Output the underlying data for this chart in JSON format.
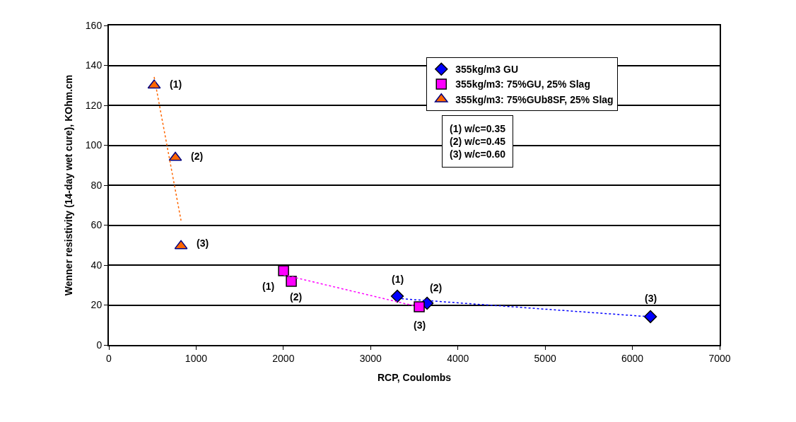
{
  "chart_data": {
    "type": "scatter",
    "xlabel": "RCP, Coulombs",
    "ylabel": "Wenner resistivity (14-day wet cure), KOhm.cm",
    "xlim": [
      0,
      7000
    ],
    "xticks": [
      0,
      1000,
      2000,
      3000,
      4000,
      5000,
      6000,
      7000
    ],
    "ylim": [
      0,
      160
    ],
    "yticks": [
      0,
      20,
      40,
      60,
      80,
      100,
      120,
      140,
      160
    ],
    "grid": "y",
    "legend": "top right",
    "series": [
      {
        "name": "355kg/m3 GU",
        "marker": "diamond",
        "color": "#0000ff",
        "x": [
          3306,
          3647,
          6207
        ],
        "values": [
          24.4,
          20.9,
          14.2
        ]
      },
      {
        "name": "355kg/m3: 75%GU, 25% Slag",
        "marker": "square",
        "color": "#ff00ff",
        "x": [
          2002,
          2091,
          3557
        ],
        "values": [
          37.2,
          31.9,
          19.1
        ]
      },
      {
        "name": "355kg/m3: 75%GUb8SF, 25% Slag",
        "marker": "triangle",
        "color": "#ff6600",
        "x": [
          519,
          762,
          827
        ],
        "values": [
          130,
          93.8,
          49.6
        ]
      },
      {
        "type": "line",
        "line_style": "dotted",
        "color": "#0000ff",
        "x": [
          3306,
          6207
        ],
        "values": [
          23.3,
          14.1
        ]
      },
      {
        "type": "line",
        "line_style": "dotted",
        "color": "#ff00ff",
        "x": [
          2002,
          3557
        ],
        "values": [
          35.1,
          19.0
        ]
      },
      {
        "type": "line",
        "line_style": "dotted",
        "color": "#ff6600",
        "x": [
          519,
          827
        ],
        "values": [
          134.2,
          62.3
        ]
      }
    ],
    "annotations": [
      {
        "text": "(1)",
        "x": 519,
        "y": 130
      },
      {
        "text": "(2)",
        "x": 762,
        "y": 93.8
      },
      {
        "text": "(3)",
        "x": 827,
        "y": 49.6
      },
      {
        "text": "(1)",
        "x": 2002,
        "y": 37.2
      },
      {
        "text": "(2)",
        "x": 2091,
        "y": 31.9
      },
      {
        "text": "(3)",
        "x": 3557,
        "y": 19.1
      },
      {
        "text": "(1)",
        "x": 3306,
        "y": 24.4
      },
      {
        "text": "(2)",
        "x": 3647,
        "y": 20.9
      },
      {
        "text": "(3)",
        "x": 6207,
        "y": 14.2
      },
      "(1) w/c=0.35",
      "(2) w/c=0.45",
      "(3) w/c=0.60"
    ]
  }
}
